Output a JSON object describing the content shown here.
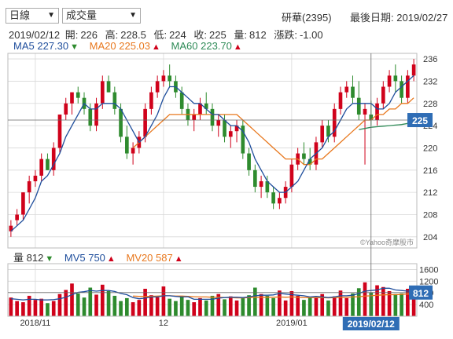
{
  "toolbar": {
    "range_value": "日線",
    "indicator_value": "成交量",
    "stock_name": "研華(2395)",
    "last_date_label": "最後日期:",
    "last_date": "2019/02/27"
  },
  "ohlc": {
    "date": "2019/02/12",
    "open_label": "開:",
    "open": "226",
    "high_label": "高:",
    "high": "228.5",
    "low_label": "低:",
    "low": "224",
    "close_label": "收:",
    "close": "225",
    "volume_label": "量:",
    "volume": "812",
    "change_label": "漲跌:",
    "change": "-1.00"
  },
  "ma_legend": [
    {
      "label": "MA5",
      "value": "227.30",
      "trend": "down",
      "color": "#1f4e9c"
    },
    {
      "label": "MA20",
      "value": "225.03",
      "trend": "up",
      "color": "#e8781e"
    },
    {
      "label": "MA60",
      "value": "223.70",
      "trend": "up",
      "color": "#2e8b57"
    }
  ],
  "vol_legend": [
    {
      "label": "量",
      "value": "812",
      "trend": "down",
      "color": "#333333"
    },
    {
      "label": "MV5",
      "value": "750",
      "trend": "up",
      "color": "#1f4e9c"
    },
    {
      "label": "MV20",
      "value": "587",
      "trend": "up",
      "color": "#e8781e"
    }
  ],
  "watermark": "©Yahoo奇摩股市",
  "cursor_price_label": "225",
  "cursor_volume_label": "812",
  "cursor_date_label": "2019/02/12",
  "colors": {
    "up": "#d0021b",
    "down": "#2e8b2e",
    "label_bg": "#2f6db5",
    "grid": "#d8d8d8"
  },
  "chart_data": [
    {
      "type": "candlestick",
      "ylim": [
        202,
        237
      ],
      "yticks": [
        204,
        208,
        212,
        216,
        220,
        224,
        228,
        232,
        236
      ],
      "xtick_labels": [
        {
          "label": "2018/11",
          "index": 4
        },
        {
          "label": "12",
          "index": 25
        },
        {
          "label": "2019/01",
          "index": 46
        }
      ],
      "candles": [
        [
          205,
          207,
          204,
          206
        ],
        [
          207,
          209,
          206,
          208
        ],
        [
          208,
          212,
          207,
          212
        ],
        [
          212,
          215,
          210,
          214
        ],
        [
          214,
          216,
          213,
          215
        ],
        [
          215,
          219,
          214,
          218
        ],
        [
          218,
          219,
          216,
          216
        ],
        [
          216,
          221,
          215,
          220
        ],
        [
          220,
          226,
          219,
          226
        ],
        [
          226,
          229,
          225,
          228
        ],
        [
          228,
          230,
          226,
          230
        ],
        [
          230,
          231,
          228,
          229
        ],
        [
          229,
          230,
          226,
          227
        ],
        [
          227,
          228,
          223,
          224
        ],
        [
          224,
          229,
          223,
          228
        ],
        [
          228,
          233,
          227,
          232
        ],
        [
          232,
          233,
          230,
          230
        ],
        [
          230,
          231,
          226,
          227
        ],
        [
          227,
          228,
          221,
          222
        ],
        [
          222,
          224,
          218,
          219
        ],
        [
          219,
          221,
          217,
          220
        ],
        [
          220,
          223,
          219,
          222
        ],
        [
          222,
          228,
          221,
          227
        ],
        [
          227,
          231,
          226,
          230
        ],
        [
          230,
          233,
          229,
          232
        ],
        [
          232,
          234,
          231,
          233
        ],
        [
          233,
          235,
          231,
          232
        ],
        [
          232,
          233,
          229,
          230
        ],
        [
          230,
          231,
          226,
          227
        ],
        [
          227,
          228,
          224,
          225
        ],
        [
          225,
          227,
          223,
          226
        ],
        [
          226,
          229,
          225,
          228
        ],
        [
          228,
          230,
          226,
          227
        ],
        [
          227,
          228,
          223,
          224
        ],
        [
          224,
          226,
          222,
          225
        ],
        [
          225,
          226,
          221,
          222
        ],
        [
          222,
          224,
          220,
          223
        ],
        [
          223,
          225,
          221,
          224
        ],
        [
          224,
          225,
          218,
          219
        ],
        [
          219,
          220,
          215,
          216
        ],
        [
          216,
          217,
          212,
          213
        ],
        [
          213,
          215,
          211,
          214
        ],
        [
          214,
          215,
          211,
          212
        ],
        [
          212,
          213,
          209,
          210
        ],
        [
          210,
          212,
          209,
          211
        ],
        [
          211,
          214,
          210,
          213
        ],
        [
          213,
          218,
          212,
          217
        ],
        [
          217,
          220,
          216,
          219
        ],
        [
          219,
          221,
          217,
          218
        ],
        [
          218,
          220,
          216,
          217
        ],
        [
          217,
          222,
          216,
          221
        ],
        [
          221,
          225,
          220,
          224
        ],
        [
          224,
          225,
          221,
          222
        ],
        [
          222,
          228,
          221,
          227
        ],
        [
          227,
          231,
          226,
          230
        ],
        [
          230,
          232,
          229,
          231
        ],
        [
          231,
          233,
          228,
          229
        ],
        [
          229,
          232,
          225,
          226
        ],
        [
          226,
          228,
          217,
          227
        ],
        [
          226,
          228.5,
          224,
          225
        ],
        [
          225,
          229,
          224,
          228
        ],
        [
          228,
          232,
          227,
          231
        ],
        [
          231,
          234,
          230,
          233
        ],
        [
          233,
          235,
          230,
          232
        ],
        [
          232,
          233,
          228,
          229
        ],
        [
          229,
          234,
          228,
          233
        ],
        [
          233,
          236,
          232,
          235
        ]
      ],
      "ma5": [
        205,
        206,
        207,
        209,
        211,
        214,
        215,
        217,
        219,
        222,
        224,
        226,
        228,
        227,
        227,
        228,
        228,
        228,
        227,
        225,
        223,
        221,
        222,
        224,
        226,
        229,
        231,
        231,
        230,
        229,
        228,
        228,
        227,
        226,
        226,
        225,
        224,
        224,
        223,
        221,
        218,
        216,
        214,
        213,
        212,
        212,
        213,
        214,
        216,
        218,
        219,
        220,
        222,
        223,
        225,
        227,
        228,
        228,
        228,
        228,
        227,
        227,
        228,
        230,
        231,
        232,
        233
      ],
      "ma20": [
        null,
        null,
        null,
        null,
        null,
        null,
        null,
        null,
        null,
        null,
        null,
        null,
        null,
        null,
        null,
        null,
        null,
        null,
        null,
        null,
        220,
        221,
        222,
        223,
        224,
        225,
        226,
        226,
        226,
        226,
        226,
        226,
        226,
        226,
        226,
        226,
        226,
        226,
        225,
        224,
        223,
        222,
        221,
        220,
        219,
        218,
        218,
        218,
        217,
        217,
        218,
        218,
        219,
        220,
        221,
        222,
        223,
        224,
        225,
        225,
        226,
        226,
        227,
        227,
        228,
        228,
        229
      ],
      "ma60": [
        null,
        null,
        null,
        null,
        null,
        null,
        null,
        null,
        null,
        null,
        null,
        null,
        null,
        null,
        null,
        null,
        null,
        null,
        null,
        null,
        null,
        null,
        null,
        null,
        null,
        null,
        null,
        null,
        null,
        null,
        null,
        null,
        null,
        null,
        null,
        null,
        null,
        null,
        null,
        null,
        null,
        null,
        null,
        null,
        null,
        null,
        null,
        null,
        null,
        null,
        null,
        null,
        null,
        null,
        null,
        null,
        null,
        223.3,
        223.5,
        223.7,
        223.8,
        223.9,
        224,
        224.1,
        224.2,
        224.4,
        224.5
      ]
    },
    {
      "type": "bar",
      "ylim": [
        0,
        1800
      ],
      "yticks": [
        400,
        800,
        1200,
        1600
      ],
      "volumes": [
        640,
        520,
        480,
        700,
        560,
        600,
        450,
        520,
        760,
        900,
        1120,
        780,
        640,
        980,
        740,
        1080,
        860,
        700,
        520,
        620,
        480,
        560,
        940,
        720,
        650,
        1020,
        600,
        520,
        700,
        560,
        480,
        620,
        540,
        700,
        760,
        580,
        680,
        540,
        620,
        720,
        980,
        760,
        700,
        620,
        880,
        540,
        860,
        700,
        560,
        660,
        620,
        760,
        540,
        680,
        880,
        620,
        780,
        960,
        1160,
        812,
        1060,
        1000,
        860,
        760,
        780,
        940,
        980
      ],
      "mv5": [
        600,
        580,
        560,
        580,
        580,
        560,
        560,
        570,
        600,
        650,
        740,
        820,
        840,
        880,
        860,
        880,
        880,
        850,
        780,
        740,
        640,
        600,
        620,
        660,
        660,
        700,
        700,
        680,
        660,
        670,
        580,
        580,
        580,
        580,
        620,
        640,
        650,
        650,
        640,
        660,
        700,
        720,
        720,
        730,
        780,
        760,
        740,
        720,
        700,
        660,
        680,
        660,
        640,
        660,
        700,
        700,
        720,
        780,
        860,
        880,
        900,
        960,
        960,
        900,
        880,
        860,
        860
      ],
      "mv20": [
        null,
        null,
        null,
        null,
        null,
        null,
        null,
        null,
        null,
        null,
        null,
        null,
        null,
        null,
        null,
        null,
        null,
        null,
        null,
        null,
        690,
        680,
        680,
        680,
        690,
        700,
        700,
        690,
        690,
        680,
        670,
        660,
        660,
        650,
        650,
        640,
        640,
        630,
        630,
        640,
        650,
        650,
        650,
        650,
        660,
        650,
        660,
        650,
        640,
        640,
        640,
        640,
        630,
        640,
        650,
        650,
        660,
        670,
        690,
        700,
        720,
        730,
        740,
        740,
        750,
        760,
        770
      ]
    }
  ]
}
